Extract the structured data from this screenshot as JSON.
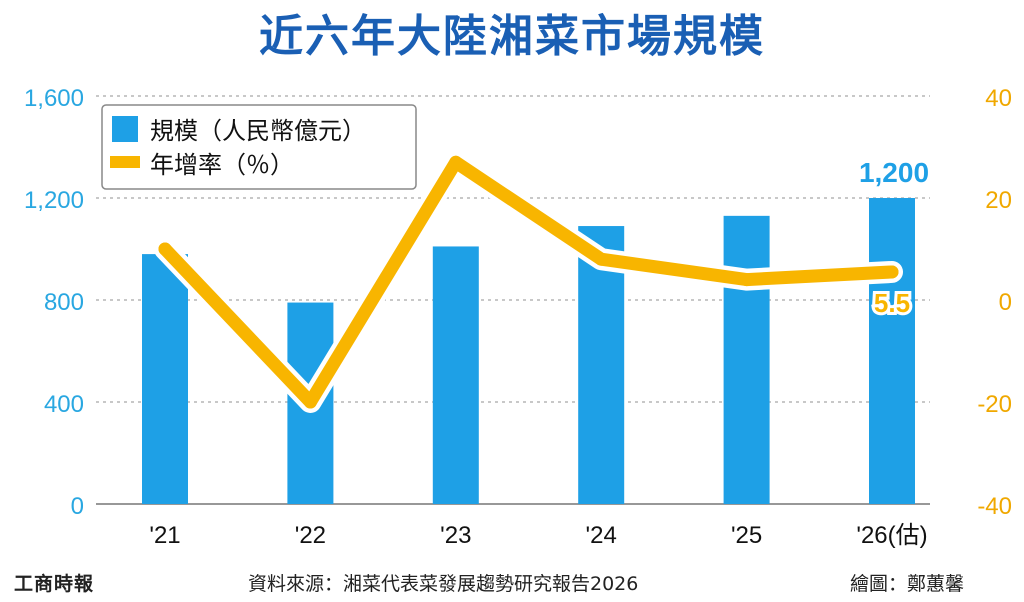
{
  "title": "近六年大陸湘菜市場規模",
  "colors": {
    "title": "#1a5fb4",
    "bar": "#1ea0e6",
    "line": "#f8b500",
    "left_axis_text": "#29a7e1",
    "right_axis_text": "#f0a800",
    "grid": "#a8a8a8",
    "footer_text": "#222222"
  },
  "legend": {
    "bar_label": "規模（人民幣億元）",
    "line_label": "年增率（％）"
  },
  "chart_data": {
    "type": "bar",
    "categories": [
      "'21",
      "'22",
      "'23",
      "'24",
      "'25",
      "'26(估)"
    ],
    "series": [
      {
        "name": "規模（人民幣億元）",
        "type": "bar",
        "axis": "left",
        "values": [
          980,
          790,
          1010,
          1090,
          1130,
          1200
        ]
      },
      {
        "name": "年增率（％）",
        "type": "line",
        "axis": "right",
        "values": [
          10,
          -20,
          27,
          8,
          4,
          5.5
        ]
      }
    ],
    "left_axis": {
      "ylim": [
        0,
        1600
      ],
      "ticks": [
        "0",
        "400",
        "800",
        "1,200",
        "1,600"
      ]
    },
    "right_axis": {
      "ylim": [
        -40,
        40
      ],
      "ticks": [
        "-40",
        "-20",
        "0",
        "20",
        "40"
      ]
    },
    "data_labels": [
      {
        "series": "規模（人民幣億元）",
        "category": "'26(估)",
        "text": "1,200"
      },
      {
        "series": "年增率（％）",
        "category": "'26(估)",
        "text": "5.5"
      }
    ],
    "grid": true,
    "legend_position": "top-left"
  },
  "footer": {
    "brand": "工商時報",
    "source": "資料來源：湘菜代表菜發展趨勢研究報告2026",
    "credit": "繪圖：鄭蕙馨"
  }
}
